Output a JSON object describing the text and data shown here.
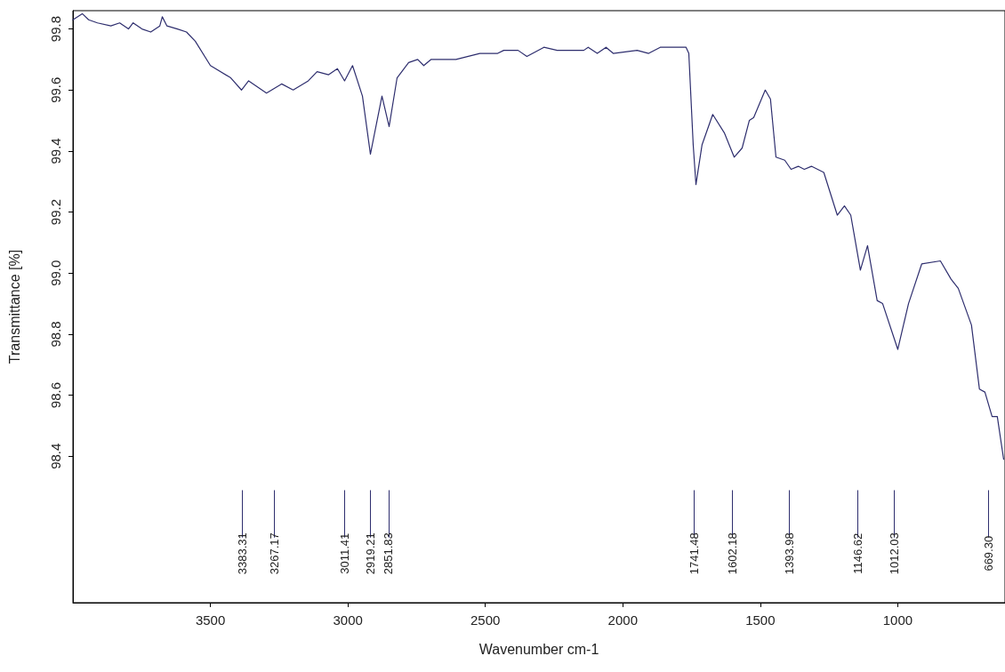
{
  "chart_data": {
    "type": "line",
    "xlabel": "Wavenumber cm-1",
    "ylabel": "Transmittance [%]",
    "xlim": [
      4000,
      610
    ],
    "ylim": [
      97.92,
      99.86
    ],
    "xticks": [
      3500,
      3000,
      2500,
      2000,
      1500,
      1000
    ],
    "yticks": [
      98.4,
      98.6,
      98.8,
      {
        "value": 99.0,
        "label": "99.0"
      },
      99.2,
      99.4,
      99.6,
      99.8
    ],
    "series": [
      {
        "color": "#2e2e6e",
        "x": [
          4000,
          3966,
          3943,
          3911,
          3862,
          3830,
          3798,
          3781,
          3749,
          3717,
          3684,
          3675,
          3658,
          3620,
          3587,
          3555,
          3500,
          3426,
          3387,
          3361,
          3296,
          3241,
          3199,
          3144,
          3112,
          3070,
          3038,
          3012,
          2983,
          2947,
          2918,
          2876,
          2850,
          2821,
          2779,
          2746,
          2724,
          2698,
          2607,
          2520,
          2455,
          2433,
          2381,
          2349,
          2287,
          2239,
          2142,
          2126,
          2093,
          2061,
          2035,
          1948,
          1906,
          1864,
          1770,
          1760,
          1744,
          1734,
          1712,
          1673,
          1631,
          1595,
          1566,
          1540,
          1524,
          1482,
          1463,
          1443,
          1411,
          1388,
          1362,
          1340,
          1314,
          1269,
          1220,
          1194,
          1171,
          1136,
          1110,
          1075,
          1055,
          1000,
          961,
          913,
          845,
          806,
          780,
          732,
          703,
          683,
          657,
          638,
          615
        ],
        "values": [
          99.83,
          99.85,
          99.83,
          99.82,
          99.81,
          99.82,
          99.8,
          99.82,
          99.8,
          99.79,
          99.81,
          99.84,
          99.81,
          99.8,
          99.79,
          99.76,
          99.68,
          99.64,
          99.6,
          99.63,
          99.59,
          99.62,
          99.6,
          99.63,
          99.66,
          99.65,
          99.67,
          99.63,
          99.68,
          99.58,
          99.39,
          99.58,
          99.48,
          99.64,
          99.69,
          99.7,
          99.68,
          99.7,
          99.7,
          99.72,
          99.72,
          99.73,
          99.73,
          99.71,
          99.74,
          99.73,
          99.73,
          99.74,
          99.72,
          99.74,
          99.72,
          99.73,
          99.72,
          99.74,
          99.74,
          99.72,
          99.42,
          99.29,
          99.42,
          99.52,
          99.46,
          99.38,
          99.41,
          99.5,
          99.51,
          99.6,
          99.57,
          99.38,
          99.37,
          99.34,
          99.35,
          99.34,
          99.35,
          99.33,
          99.19,
          99.22,
          99.19,
          99.01,
          99.09,
          98.91,
          98.9,
          98.75,
          98.9,
          99.03,
          99.04,
          98.98,
          98.95,
          98.83,
          98.62,
          98.61,
          98.53,
          98.53,
          98.39
        ]
      }
    ],
    "ref_lines": [
      {
        "axis": "x",
        "value": 3383.31,
        "label": "3383.31"
      },
      {
        "axis": "x",
        "value": 3267.17,
        "label": "3267.17"
      },
      {
        "axis": "x",
        "value": 3011.41,
        "label": "3011.41"
      },
      {
        "axis": "x",
        "value": 2919.21,
        "label": "2919.21"
      },
      {
        "axis": "x",
        "value": 2851.83,
        "label": "2851.83"
      },
      {
        "axis": "x",
        "value": 1741.48,
        "label": "1741.48"
      },
      {
        "axis": "x",
        "value": 1602.18,
        "label": "1602.18"
      },
      {
        "axis": "x",
        "value": 1393.98,
        "label": "1393.98"
      },
      {
        "axis": "x",
        "value": 1146.62,
        "label": "1146.62"
      },
      {
        "axis": "x",
        "value": 1012.03,
        "label": "1012.03"
      },
      {
        "axis": "x",
        "value": 669.3,
        "label": "669.30"
      }
    ]
  }
}
